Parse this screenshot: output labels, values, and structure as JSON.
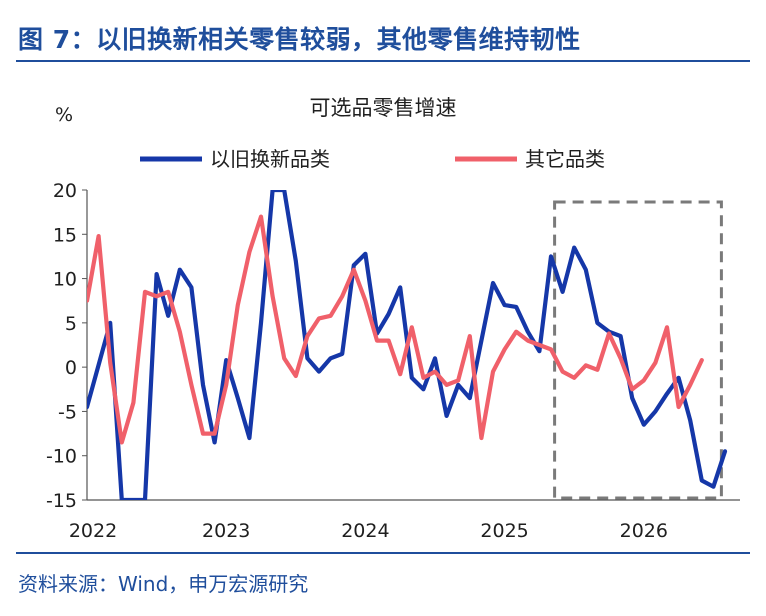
{
  "figure": {
    "label": "图 7：以旧换新相关零售较弱，其他零售维持韧性",
    "source": "资料来源：Wind，申万宏源研究"
  },
  "chart_data": {
    "type": "line",
    "title": "可选品零售增速",
    "ylabel": "%",
    "xlabel": "",
    "ylim": [
      -15,
      20
    ],
    "yticks": [
      20,
      15,
      10,
      5,
      0,
      -5,
      -10,
      -15
    ],
    "x_tick_labels": [
      "2022",
      "2023",
      "2024",
      "2025",
      "2026"
    ],
    "x_start": "2022-01",
    "x_end": "2026-07",
    "legend_position": "top",
    "grid": false,
    "highlight_box": {
      "from": "2025-06",
      "to": "2026-07"
    },
    "series": [
      {
        "name": "以旧换新品类",
        "color": "#1537a8",
        "points": [
          [
            "2022-01",
            -4.5
          ],
          [
            "2022-03",
            5.0
          ],
          [
            "2022-04",
            -15.0
          ],
          [
            "2022-06",
            -15.0
          ],
          [
            "2022-07",
            10.5
          ],
          [
            "2022-08",
            5.8
          ],
          [
            "2022-09",
            11.0
          ],
          [
            "2022-10",
            9.0
          ],
          [
            "2022-11",
            -2.0
          ],
          [
            "2022-12",
            -8.5
          ],
          [
            "2023-01",
            0.8
          ],
          [
            "2023-02",
            -3.5
          ],
          [
            "2023-03",
            -8.0
          ],
          [
            "2023-04",
            5.0
          ],
          [
            "2023-05",
            20.0
          ],
          [
            "2023-06",
            20.0
          ],
          [
            "2023-07",
            12.0
          ],
          [
            "2023-08",
            1.0
          ],
          [
            "2023-09",
            -0.5
          ],
          [
            "2023-10",
            1.0
          ],
          [
            "2023-11",
            1.5
          ],
          [
            "2023-12",
            11.5
          ],
          [
            "2024-01",
            12.8
          ],
          [
            "2024-02",
            3.8
          ],
          [
            "2024-03",
            6.0
          ],
          [
            "2024-04",
            9.0
          ],
          [
            "2024-05",
            -1.2
          ],
          [
            "2024-06",
            -2.5
          ],
          [
            "2024-07",
            1.0
          ],
          [
            "2024-08",
            -5.5
          ],
          [
            "2024-09",
            -2.0
          ],
          [
            "2024-10",
            -3.5
          ],
          [
            "2024-11",
            3.0
          ],
          [
            "2024-12",
            9.5
          ],
          [
            "2025-01",
            7.0
          ],
          [
            "2025-02",
            6.8
          ],
          [
            "2025-03",
            4.0
          ],
          [
            "2025-04",
            1.8
          ],
          [
            "2025-05",
            12.5
          ],
          [
            "2025-06",
            8.5
          ],
          [
            "2025-07",
            13.5
          ],
          [
            "2025-08",
            11.0
          ],
          [
            "2025-09",
            5.0
          ],
          [
            "2025-10",
            4.0
          ],
          [
            "2025-11",
            3.5
          ],
          [
            "2025-12",
            -3.5
          ],
          [
            "2026-01",
            -6.5
          ],
          [
            "2026-02",
            -5.0
          ],
          [
            "2026-03",
            -3.0
          ],
          [
            "2026-04",
            -1.2
          ],
          [
            "2026-05",
            -6.0
          ],
          [
            "2026-06",
            -12.8
          ],
          [
            "2026-07",
            -13.5
          ],
          [
            "2026-08",
            -9.5
          ]
        ]
      },
      {
        "name": "其它品类",
        "color": "#f0606a",
        "points": [
          [
            "2022-01",
            7.5
          ],
          [
            "2022-02",
            14.8
          ],
          [
            "2022-03",
            0.5
          ],
          [
            "2022-04",
            -8.5
          ],
          [
            "2022-05",
            -4.0
          ],
          [
            "2022-06",
            8.5
          ],
          [
            "2022-07",
            8.0
          ],
          [
            "2022-08",
            8.5
          ],
          [
            "2022-09",
            4.0
          ],
          [
            "2022-10",
            -2.0
          ],
          [
            "2022-11",
            -7.5
          ],
          [
            "2022-12",
            -7.5
          ],
          [
            "2023-01",
            -2.0
          ],
          [
            "2023-02",
            7.0
          ],
          [
            "2023-03",
            13.0
          ],
          [
            "2023-04",
            17.0
          ],
          [
            "2023-05",
            8.0
          ],
          [
            "2023-06",
            1.0
          ],
          [
            "2023-07",
            -1.0
          ],
          [
            "2023-08",
            3.5
          ],
          [
            "2023-09",
            5.5
          ],
          [
            "2023-10",
            5.8
          ],
          [
            "2023-11",
            8.0
          ],
          [
            "2023-12",
            11.0
          ],
          [
            "2024-01",
            7.5
          ],
          [
            "2024-02",
            3.0
          ],
          [
            "2024-03",
            3.0
          ],
          [
            "2024-04",
            -0.8
          ],
          [
            "2024-05",
            4.5
          ],
          [
            "2024-06",
            -1.2
          ],
          [
            "2024-07",
            -0.5
          ],
          [
            "2024-08",
            -2.0
          ],
          [
            "2024-09",
            -1.5
          ],
          [
            "2024-10",
            3.5
          ],
          [
            "2024-11",
            -8.0
          ],
          [
            "2024-12",
            -0.5
          ],
          [
            "2025-01",
            2.0
          ],
          [
            "2025-02",
            4.0
          ],
          [
            "2025-03",
            3.0
          ],
          [
            "2025-04",
            2.5
          ],
          [
            "2025-05",
            2.0
          ],
          [
            "2025-06",
            -0.5
          ],
          [
            "2025-07",
            -1.2
          ],
          [
            "2025-08",
            0.2
          ],
          [
            "2025-09",
            -0.3
          ],
          [
            "2025-10",
            3.8
          ],
          [
            "2025-11",
            1.0
          ],
          [
            "2025-12",
            -2.5
          ],
          [
            "2026-01",
            -1.5
          ],
          [
            "2026-02",
            0.5
          ],
          [
            "2026-03",
            4.5
          ],
          [
            "2026-04",
            -4.5
          ],
          [
            "2026-05",
            -2.0
          ],
          [
            "2026-06",
            0.8
          ]
        ]
      }
    ]
  }
}
